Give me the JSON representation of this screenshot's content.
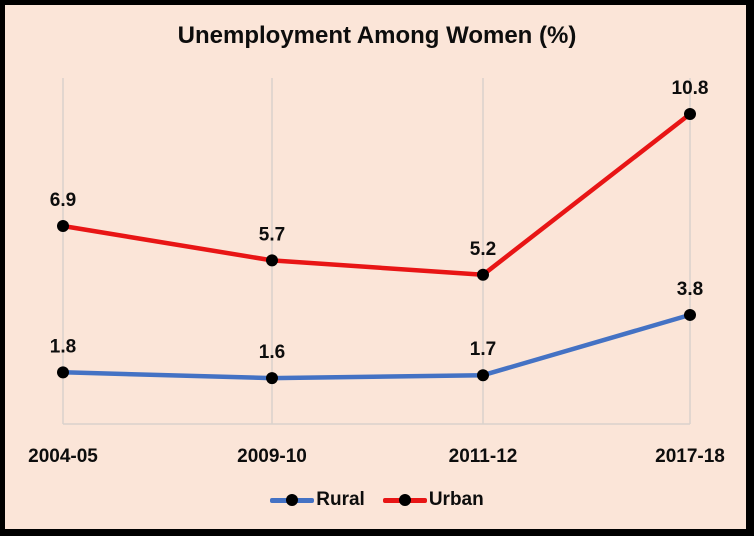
{
  "chart_data": {
    "type": "line",
    "title": "Unemployment Among Women (%)",
    "categories": [
      "2004-05",
      "2009-10",
      "2011-12",
      "2017-18"
    ],
    "series": [
      {
        "name": "Rural",
        "color": "#4472c4",
        "values": [
          1.8,
          1.6,
          1.7,
          3.8
        ]
      },
      {
        "name": "Urban",
        "color": "#e81515",
        "values": [
          6.9,
          5.7,
          5.2,
          10.8
        ]
      }
    ],
    "xlabel": "",
    "ylabel": "",
    "ylim": [
      0,
      10.8
    ],
    "grid": "vertical",
    "legend_position": "bottom",
    "data_labels": true,
    "marker_color": "#000000"
  },
  "colors": {
    "background": "#fbe5d8",
    "border": "#000000",
    "gridline": "#d9d2cc"
  }
}
